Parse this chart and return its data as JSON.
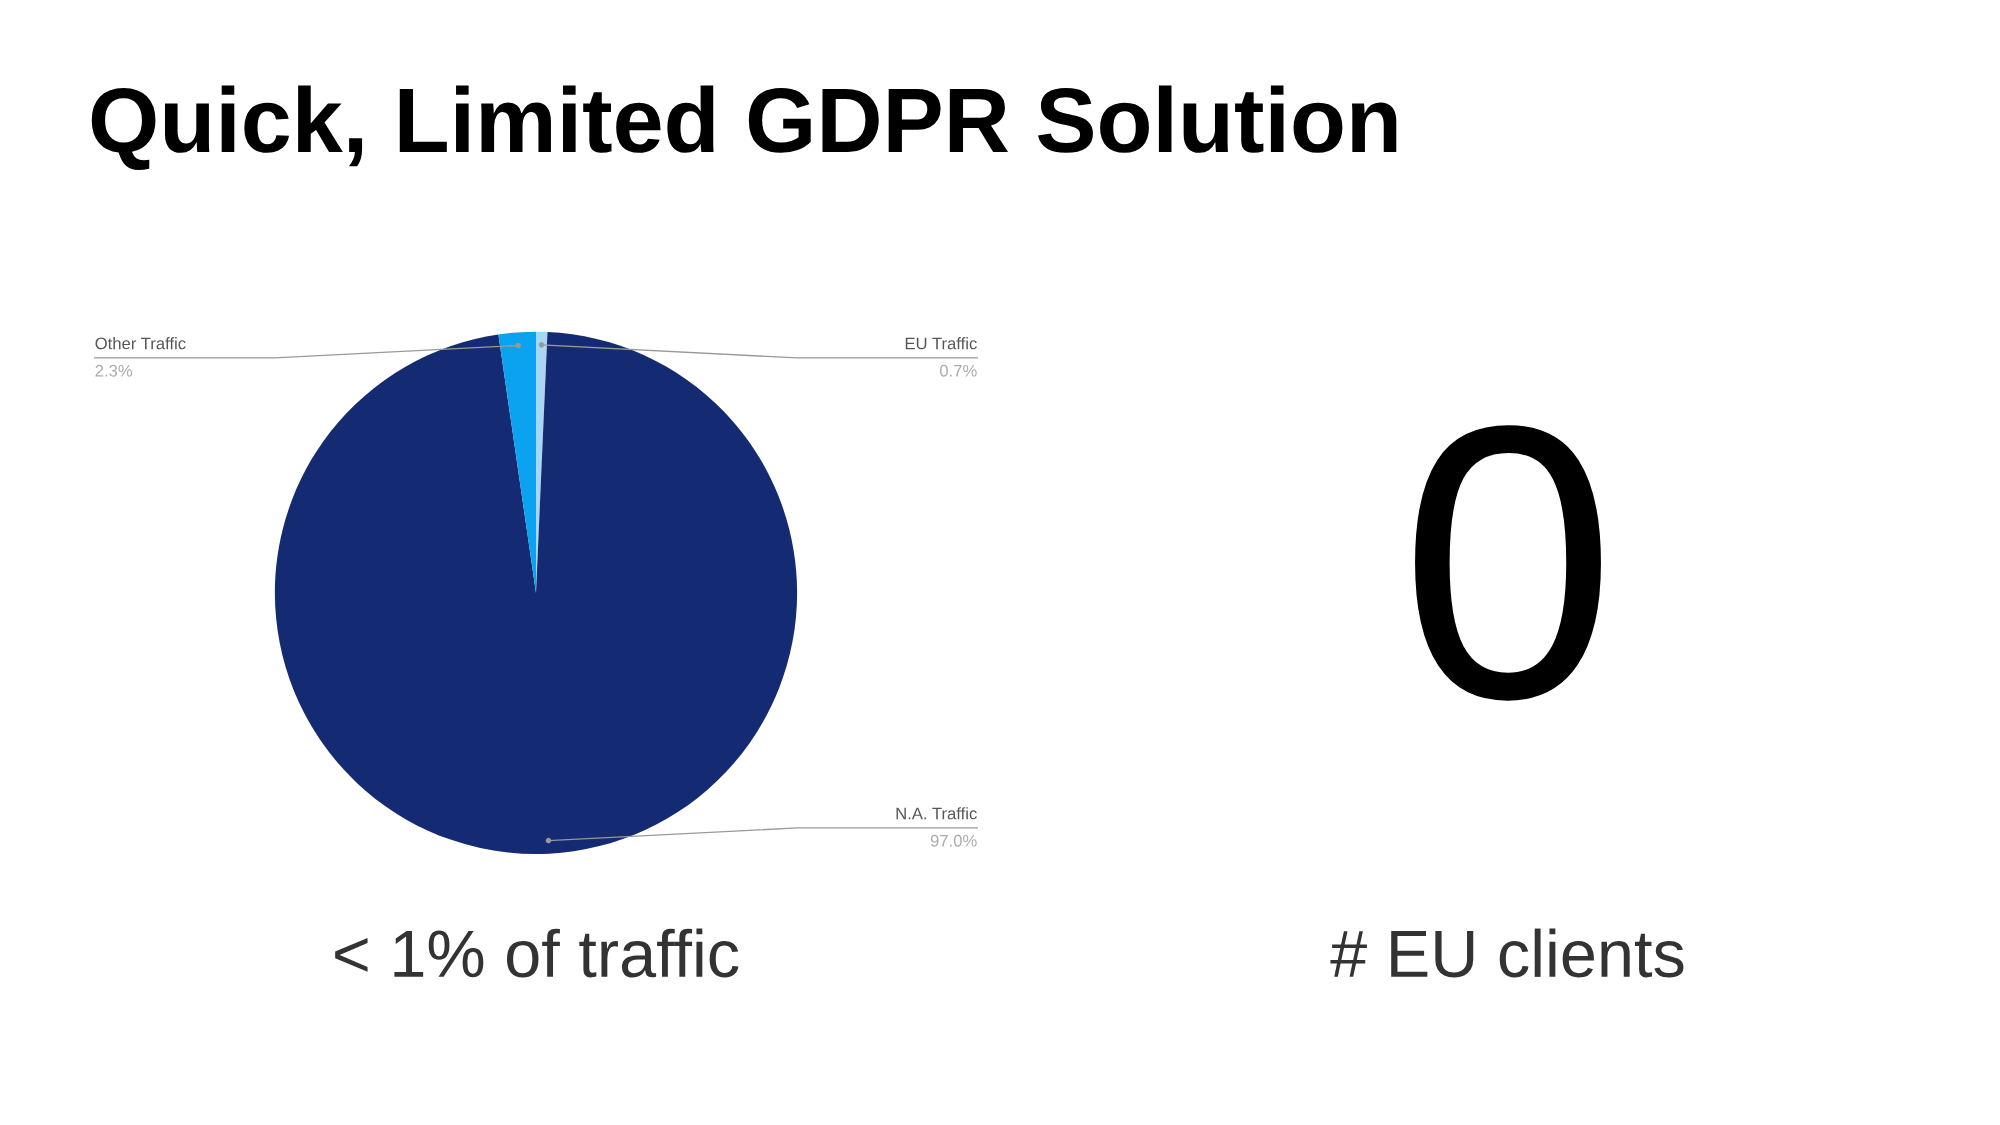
{
  "chart_data": [
    {
      "type": "pie",
      "title": "Quick, Limited GDPR Solution",
      "categories": [
        "EU Traffic",
        "N.A. Traffic",
        "Other Traffic"
      ],
      "values": [
        0.7,
        97.0,
        2.3
      ],
      "colors": [
        "#a9d6f5",
        "#142a73",
        "#0ba2ef"
      ],
      "value_labels": [
        "0.7%",
        "97.0%",
        "2.3%"
      ],
      "annotations": [
        "< 1% of traffic"
      ]
    },
    {
      "type": "other",
      "annotations": [
        "0",
        "# EU clients"
      ]
    }
  ]
}
